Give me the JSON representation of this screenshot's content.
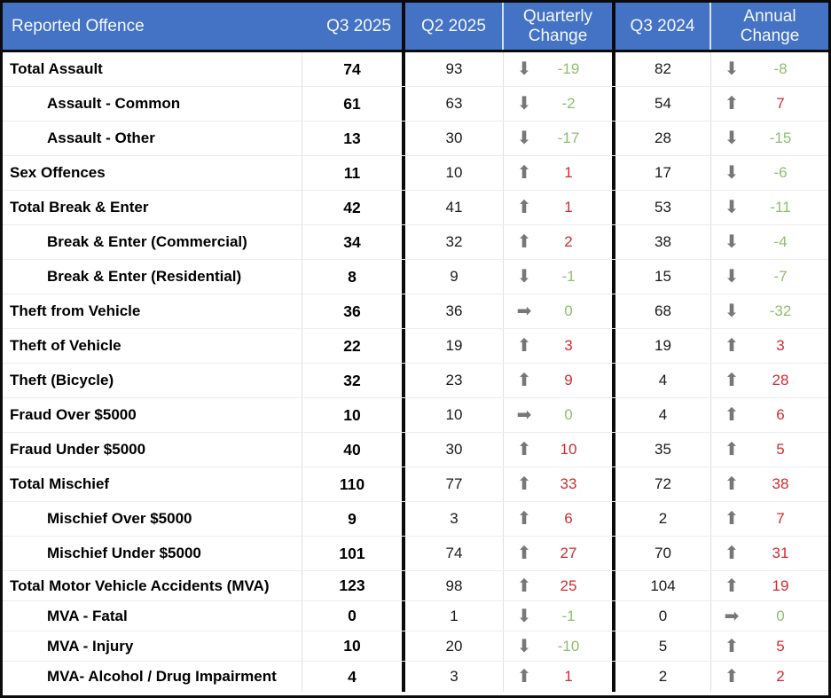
{
  "header": {
    "offence": "Reported Offence",
    "q3_2025": "Q3 2025",
    "q2_2025": "Q2 2025",
    "quarterly_change": "Quarterly Change",
    "q3_2024": "Q3 2024",
    "annual_change": "Annual Change"
  },
  "colors": {
    "header_bg": "#4472C4",
    "header_fg": "#F4F8FC",
    "increase_red": "#D22B2F",
    "decrease_green": "#8DBE6E",
    "arrow_gray": "#777777"
  },
  "icons": {
    "up-arrow": "⬆",
    "down-arrow": "⬇",
    "right-arrow": "➡"
  },
  "rows": [
    {
      "label": "Total Assault",
      "indent": false,
      "q3_2025": "74",
      "q2_2025": "93",
      "q_dir": "down",
      "q_change": "-19",
      "q3_2024": "82",
      "a_dir": "down",
      "a_change": "-8"
    },
    {
      "label": "Assault - Common",
      "indent": true,
      "q3_2025": "61",
      "q2_2025": "63",
      "q_dir": "down",
      "q_change": "-2",
      "q3_2024": "54",
      "a_dir": "up",
      "a_change": "7"
    },
    {
      "label": "Assault - Other",
      "indent": true,
      "q3_2025": "13",
      "q2_2025": "30",
      "q_dir": "down",
      "q_change": "-17",
      "q3_2024": "28",
      "a_dir": "down",
      "a_change": "-15"
    },
    {
      "label": "Sex Offences",
      "indent": false,
      "q3_2025": "11",
      "q2_2025": "10",
      "q_dir": "up",
      "q_change": "1",
      "q3_2024": "17",
      "a_dir": "down",
      "a_change": "-6"
    },
    {
      "label": "Total Break & Enter",
      "indent": false,
      "q3_2025": "42",
      "q2_2025": "41",
      "q_dir": "up",
      "q_change": "1",
      "q3_2024": "53",
      "a_dir": "down",
      "a_change": "-11"
    },
    {
      "label": "Break & Enter (Commercial)",
      "indent": true,
      "q3_2025": "34",
      "q2_2025": "32",
      "q_dir": "up",
      "q_change": "2",
      "q3_2024": "38",
      "a_dir": "down",
      "a_change": "-4"
    },
    {
      "label": "Break & Enter (Residential)",
      "indent": true,
      "q3_2025": "8",
      "q2_2025": "9",
      "q_dir": "down",
      "q_change": "-1",
      "q3_2024": "15",
      "a_dir": "down",
      "a_change": "-7"
    },
    {
      "label": "Theft from Vehicle",
      "indent": false,
      "q3_2025": "36",
      "q2_2025": "36",
      "q_dir": "right",
      "q_change": "0",
      "q3_2024": "68",
      "a_dir": "down",
      "a_change": "-32"
    },
    {
      "label": "Theft of Vehicle",
      "indent": false,
      "q3_2025": "22",
      "q2_2025": "19",
      "q_dir": "up",
      "q_change": "3",
      "q3_2024": "19",
      "a_dir": "up",
      "a_change": "3"
    },
    {
      "label": "Theft (Bicycle)",
      "indent": false,
      "q3_2025": "32",
      "q2_2025": "23",
      "q_dir": "up",
      "q_change": "9",
      "q3_2024": "4",
      "a_dir": "up",
      "a_change": "28"
    },
    {
      "label": "Fraud Over $5000",
      "indent": false,
      "q3_2025": "10",
      "q2_2025": "10",
      "q_dir": "right",
      "q_change": "0",
      "q3_2024": "4",
      "a_dir": "up",
      "a_change": "6"
    },
    {
      "label": "Fraud Under $5000",
      "indent": false,
      "q3_2025": "40",
      "q2_2025": "30",
      "q_dir": "up",
      "q_change": "10",
      "q3_2024": "35",
      "a_dir": "up",
      "a_change": "5"
    },
    {
      "label": "Total Mischief",
      "indent": false,
      "q3_2025": "110",
      "q2_2025": "77",
      "q_dir": "up",
      "q_change": "33",
      "q3_2024": "72",
      "a_dir": "up",
      "a_change": "38"
    },
    {
      "label": "Mischief Over $5000",
      "indent": true,
      "q3_2025": "9",
      "q2_2025": "3",
      "q_dir": "up",
      "q_change": "6",
      "q3_2024": "2",
      "a_dir": "up",
      "a_change": "7"
    },
    {
      "label": "Mischief Under $5000",
      "indent": true,
      "q3_2025": "101",
      "q2_2025": "74",
      "q_dir": "up",
      "q_change": "27",
      "q3_2024": "70",
      "a_dir": "up",
      "a_change": "31"
    },
    {
      "label": "Total Motor Vehicle Accidents (MVA)",
      "indent": false,
      "q3_2025": "123",
      "q2_2025": "98",
      "q_dir": "up",
      "q_change": "25",
      "q3_2024": "104",
      "a_dir": "up",
      "a_change": "19"
    },
    {
      "label": "MVA - Fatal",
      "indent": true,
      "q3_2025": "0",
      "q2_2025": "1",
      "q_dir": "down",
      "q_change": "-1",
      "q3_2024": "0",
      "a_dir": "right",
      "a_change": "0"
    },
    {
      "label": "MVA - Injury",
      "indent": true,
      "q3_2025": "10",
      "q2_2025": "20",
      "q_dir": "down",
      "q_change": "-10",
      "q3_2024": "5",
      "a_dir": "up",
      "a_change": "5"
    },
    {
      "label": "MVA- Alcohol / Drug Impairment",
      "indent": true,
      "q3_2025": "4",
      "q2_2025": "3",
      "q_dir": "up",
      "q_change": "1",
      "q3_2024": "2",
      "a_dir": "up",
      "a_change": "2"
    }
  ]
}
